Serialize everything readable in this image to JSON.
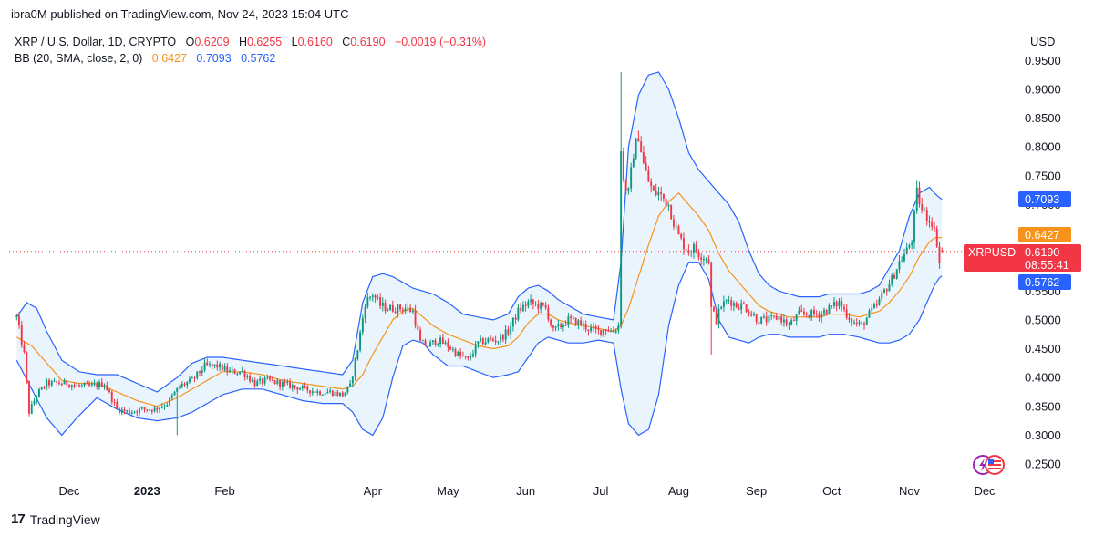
{
  "header": {
    "published": "ibra0M published on TradingView.com, Nov 24, 2023 15:04 UTC"
  },
  "legend": {
    "symbol": "XRP / U.S. Dollar, 1D, CRYPTO",
    "o_label": "O",
    "o_value": "0.6209",
    "h_label": "H",
    "h_value": "0.6255",
    "l_label": "L",
    "l_value": "0.6160",
    "c_label": "C",
    "c_value": "0.6190",
    "change": "−0.0019 (−0.31%)",
    "bb_label": "BB (20, SMA, close, 2, 0)",
    "bb_basis": "0.6427",
    "bb_upper": "0.7093",
    "bb_lower": "0.5762"
  },
  "axis": {
    "currency": "USD"
  },
  "price_tags": {
    "upper_value": "0.7093",
    "basis_value": "0.6427",
    "symbol_name": "XRPUSD",
    "last_price": "0.6190",
    "countdown": "08:55:41",
    "lower_value": "0.5762"
  },
  "footer": {
    "logo_mark": "17",
    "brand": "TradingView"
  },
  "colors": {
    "up": "#089981",
    "down": "#f23645",
    "basis": "#f7931a",
    "band": "#2962ff",
    "band_fill": "#e3f0fb"
  },
  "chart_data": {
    "type": "candlestick",
    "title": "XRP / U.S. Dollar, 1D, CRYPTO",
    "indicator": "BB (20, SMA, close, 2, 0)",
    "xlabel": "",
    "ylabel": "USD",
    "ylim": [
      0.22,
      0.96
    ],
    "y_ticks": [
      "0.2500",
      "0.3000",
      "0.3500",
      "0.4000",
      "0.4500",
      "0.5000",
      "0.5500",
      "0.6000",
      "0.6500",
      "0.7000",
      "0.7500",
      "0.8000",
      "0.8500",
      "0.9000",
      "0.9500"
    ],
    "x_ticks": [
      {
        "label": "Dec",
        "day": 21,
        "bold": false
      },
      {
        "label": "2023",
        "day": 52,
        "bold": true
      },
      {
        "label": "Feb",
        "day": 83,
        "bold": false
      },
      {
        "label": "Apr",
        "day": 142,
        "bold": false
      },
      {
        "label": "May",
        "day": 172,
        "bold": false
      },
      {
        "label": "Jun",
        "day": 203,
        "bold": false
      },
      {
        "label": "Jul",
        "day": 233,
        "bold": false
      },
      {
        "label": "Aug",
        "day": 264,
        "bold": false
      },
      {
        "label": "Sep",
        "day": 295,
        "bold": false
      },
      {
        "label": "Oct",
        "day": 325,
        "bold": false
      },
      {
        "label": "Nov",
        "day": 356,
        "bold": false
      },
      {
        "label": "Dec",
        "day": 386,
        "bold": false
      }
    ],
    "x_range_days": [
      -3,
      398
    ],
    "last_day": 369,
    "close_keypoints": [
      [
        0,
        0.505
      ],
      [
        3,
        0.44
      ],
      [
        5,
        0.34
      ],
      [
        8,
        0.37
      ],
      [
        12,
        0.39
      ],
      [
        15,
        0.39
      ],
      [
        20,
        0.39
      ],
      [
        25,
        0.385
      ],
      [
        30,
        0.385
      ],
      [
        35,
        0.39
      ],
      [
        40,
        0.345
      ],
      [
        45,
        0.34
      ],
      [
        50,
        0.345
      ],
      [
        55,
        0.345
      ],
      [
        60,
        0.355
      ],
      [
        65,
        0.385
      ],
      [
        70,
        0.395
      ],
      [
        75,
        0.42
      ],
      [
        80,
        0.42
      ],
      [
        85,
        0.41
      ],
      [
        90,
        0.41
      ],
      [
        95,
        0.39
      ],
      [
        100,
        0.395
      ],
      [
        105,
        0.39
      ],
      [
        110,
        0.385
      ],
      [
        115,
        0.38
      ],
      [
        120,
        0.375
      ],
      [
        125,
        0.375
      ],
      [
        130,
        0.37
      ],
      [
        133,
        0.385
      ],
      [
        136,
        0.45
      ],
      [
        139,
        0.53
      ],
      [
        142,
        0.545
      ],
      [
        145,
        0.525
      ],
      [
        148,
        0.52
      ],
      [
        151,
        0.52
      ],
      [
        155,
        0.52
      ],
      [
        158,
        0.515
      ],
      [
        161,
        0.46
      ],
      [
        164,
        0.455
      ],
      [
        168,
        0.465
      ],
      [
        172,
        0.455
      ],
      [
        176,
        0.44
      ],
      [
        180,
        0.43
      ],
      [
        184,
        0.46
      ],
      [
        188,
        0.465
      ],
      [
        192,
        0.465
      ],
      [
        196,
        0.48
      ],
      [
        200,
        0.515
      ],
      [
        204,
        0.53
      ],
      [
        208,
        0.525
      ],
      [
        211,
        0.52
      ],
      [
        214,
        0.48
      ],
      [
        217,
        0.49
      ],
      [
        220,
        0.5
      ],
      [
        224,
        0.495
      ],
      [
        228,
        0.485
      ],
      [
        232,
        0.48
      ],
      [
        235,
        0.485
      ],
      [
        238,
        0.48
      ],
      [
        240,
        0.49
      ],
      [
        241,
        0.8
      ],
      [
        242,
        0.74
      ],
      [
        244,
        0.72
      ],
      [
        246,
        0.79
      ],
      [
        248,
        0.82
      ],
      [
        250,
        0.77
      ],
      [
        252,
        0.74
      ],
      [
        254,
        0.72
      ],
      [
        256,
        0.72
      ],
      [
        258,
        0.71
      ],
      [
        260,
        0.7
      ],
      [
        262,
        0.67
      ],
      [
        264,
        0.645
      ],
      [
        266,
        0.63
      ],
      [
        268,
        0.62
      ],
      [
        270,
        0.625
      ],
      [
        272,
        0.615
      ],
      [
        274,
        0.61
      ],
      [
        276,
        0.605
      ],
      [
        277,
        0.52
      ],
      [
        279,
        0.5
      ],
      [
        281,
        0.525
      ],
      [
        284,
        0.535
      ],
      [
        287,
        0.525
      ],
      [
        290,
        0.525
      ],
      [
        293,
        0.51
      ],
      [
        296,
        0.5
      ],
      [
        300,
        0.5
      ],
      [
        304,
        0.505
      ],
      [
        308,
        0.49
      ],
      [
        312,
        0.51
      ],
      [
        316,
        0.51
      ],
      [
        320,
        0.51
      ],
      [
        324,
        0.52
      ],
      [
        328,
        0.53
      ],
      [
        331,
        0.51
      ],
      [
        334,
        0.495
      ],
      [
        337,
        0.49
      ],
      [
        340,
        0.51
      ],
      [
        343,
        0.525
      ],
      [
        346,
        0.55
      ],
      [
        349,
        0.57
      ],
      [
        352,
        0.6
      ],
      [
        355,
        0.62
      ],
      [
        357,
        0.64
      ],
      [
        359,
        0.72
      ],
      [
        361,
        0.69
      ],
      [
        363,
        0.68
      ],
      [
        365,
        0.67
      ],
      [
        367,
        0.635
      ],
      [
        368,
        0.6
      ],
      [
        369,
        0.619
      ]
    ],
    "bollinger_keypoints": {
      "upper": [
        [
          0,
          0.505
        ],
        [
          4,
          0.53
        ],
        [
          8,
          0.52
        ],
        [
          12,
          0.48
        ],
        [
          18,
          0.43
        ],
        [
          25,
          0.41
        ],
        [
          32,
          0.405
        ],
        [
          40,
          0.405
        ],
        [
          48,
          0.39
        ],
        [
          56,
          0.375
        ],
        [
          64,
          0.4
        ],
        [
          70,
          0.425
        ],
        [
          76,
          0.435
        ],
        [
          82,
          0.435
        ],
        [
          90,
          0.43
        ],
        [
          98,
          0.425
        ],
        [
          106,
          0.42
        ],
        [
          114,
          0.415
        ],
        [
          122,
          0.41
        ],
        [
          130,
          0.405
        ],
        [
          134,
          0.43
        ],
        [
          138,
          0.53
        ],
        [
          142,
          0.575
        ],
        [
          146,
          0.58
        ],
        [
          150,
          0.575
        ],
        [
          154,
          0.565
        ],
        [
          158,
          0.555
        ],
        [
          162,
          0.55
        ],
        [
          166,
          0.545
        ],
        [
          172,
          0.53
        ],
        [
          178,
          0.51
        ],
        [
          184,
          0.505
        ],
        [
          190,
          0.5
        ],
        [
          196,
          0.51
        ],
        [
          200,
          0.54
        ],
        [
          204,
          0.555
        ],
        [
          208,
          0.56
        ],
        [
          212,
          0.55
        ],
        [
          216,
          0.535
        ],
        [
          220,
          0.525
        ],
        [
          226,
          0.51
        ],
        [
          232,
          0.505
        ],
        [
          238,
          0.5
        ],
        [
          241,
          0.6
        ],
        [
          244,
          0.8
        ],
        [
          248,
          0.89
        ],
        [
          252,
          0.925
        ],
        [
          256,
          0.93
        ],
        [
          260,
          0.9
        ],
        [
          264,
          0.85
        ],
        [
          268,
          0.79
        ],
        [
          272,
          0.76
        ],
        [
          276,
          0.74
        ],
        [
          280,
          0.72
        ],
        [
          284,
          0.7
        ],
        [
          288,
          0.67
        ],
        [
          292,
          0.62
        ],
        [
          296,
          0.58
        ],
        [
          300,
          0.56
        ],
        [
          304,
          0.55
        ],
        [
          308,
          0.545
        ],
        [
          312,
          0.54
        ],
        [
          316,
          0.54
        ],
        [
          320,
          0.54
        ],
        [
          324,
          0.545
        ],
        [
          330,
          0.545
        ],
        [
          336,
          0.545
        ],
        [
          340,
          0.55
        ],
        [
          344,
          0.56
        ],
        [
          348,
          0.59
        ],
        [
          352,
          0.62
        ],
        [
          356,
          0.68
        ],
        [
          360,
          0.72
        ],
        [
          364,
          0.73
        ],
        [
          366,
          0.72
        ],
        [
          368,
          0.712
        ],
        [
          369,
          0.7093
        ]
      ],
      "basis": [
        [
          0,
          0.47
        ],
        [
          6,
          0.455
        ],
        [
          12,
          0.425
        ],
        [
          18,
          0.395
        ],
        [
          25,
          0.39
        ],
        [
          32,
          0.39
        ],
        [
          40,
          0.375
        ],
        [
          48,
          0.36
        ],
        [
          56,
          0.35
        ],
        [
          64,
          0.365
        ],
        [
          70,
          0.38
        ],
        [
          76,
          0.395
        ],
        [
          82,
          0.41
        ],
        [
          90,
          0.41
        ],
        [
          98,
          0.405
        ],
        [
          106,
          0.395
        ],
        [
          114,
          0.39
        ],
        [
          122,
          0.385
        ],
        [
          130,
          0.38
        ],
        [
          134,
          0.385
        ],
        [
          138,
          0.405
        ],
        [
          142,
          0.44
        ],
        [
          146,
          0.47
        ],
        [
          150,
          0.5
        ],
        [
          154,
          0.515
        ],
        [
          158,
          0.52
        ],
        [
          162,
          0.505
        ],
        [
          166,
          0.49
        ],
        [
          172,
          0.475
        ],
        [
          178,
          0.465
        ],
        [
          184,
          0.455
        ],
        [
          190,
          0.45
        ],
        [
          196,
          0.455
        ],
        [
          200,
          0.47
        ],
        [
          204,
          0.495
        ],
        [
          208,
          0.51
        ],
        [
          212,
          0.51
        ],
        [
          216,
          0.5
        ],
        [
          220,
          0.495
        ],
        [
          226,
          0.49
        ],
        [
          232,
          0.485
        ],
        [
          238,
          0.48
        ],
        [
          241,
          0.49
        ],
        [
          244,
          0.52
        ],
        [
          248,
          0.575
        ],
        [
          252,
          0.63
        ],
        [
          256,
          0.68
        ],
        [
          260,
          0.705
        ],
        [
          264,
          0.72
        ],
        [
          268,
          0.7
        ],
        [
          272,
          0.68
        ],
        [
          276,
          0.655
        ],
        [
          280,
          0.615
        ],
        [
          284,
          0.585
        ],
        [
          288,
          0.565
        ],
        [
          292,
          0.545
        ],
        [
          296,
          0.525
        ],
        [
          300,
          0.515
        ],
        [
          304,
          0.51
        ],
        [
          308,
          0.505
        ],
        [
          312,
          0.505
        ],
        [
          316,
          0.505
        ],
        [
          320,
          0.505
        ],
        [
          324,
          0.51
        ],
        [
          330,
          0.51
        ],
        [
          336,
          0.505
        ],
        [
          340,
          0.51
        ],
        [
          344,
          0.515
        ],
        [
          348,
          0.53
        ],
        [
          352,
          0.55
        ],
        [
          356,
          0.575
        ],
        [
          360,
          0.61
        ],
        [
          364,
          0.635
        ],
        [
          366,
          0.642
        ],
        [
          368,
          0.6427
        ],
        [
          369,
          0.6427
        ]
      ],
      "lower": [
        [
          0,
          0.43
        ],
        [
          6,
          0.38
        ],
        [
          12,
          0.33
        ],
        [
          18,
          0.3
        ],
        [
          24,
          0.33
        ],
        [
          32,
          0.365
        ],
        [
          40,
          0.345
        ],
        [
          48,
          0.33
        ],
        [
          56,
          0.325
        ],
        [
          64,
          0.33
        ],
        [
          70,
          0.34
        ],
        [
          76,
          0.355
        ],
        [
          82,
          0.37
        ],
        [
          90,
          0.38
        ],
        [
          98,
          0.38
        ],
        [
          106,
          0.37
        ],
        [
          114,
          0.36
        ],
        [
          122,
          0.355
        ],
        [
          130,
          0.355
        ],
        [
          134,
          0.34
        ],
        [
          138,
          0.31
        ],
        [
          142,
          0.3
        ],
        [
          146,
          0.33
        ],
        [
          150,
          0.4
        ],
        [
          154,
          0.455
        ],
        [
          158,
          0.465
        ],
        [
          162,
          0.46
        ],
        [
          166,
          0.44
        ],
        [
          172,
          0.42
        ],
        [
          178,
          0.42
        ],
        [
          184,
          0.41
        ],
        [
          190,
          0.4
        ],
        [
          196,
          0.405
        ],
        [
          200,
          0.41
        ],
        [
          204,
          0.435
        ],
        [
          208,
          0.46
        ],
        [
          212,
          0.47
        ],
        [
          216,
          0.465
        ],
        [
          220,
          0.46
        ],
        [
          226,
          0.46
        ],
        [
          232,
          0.465
        ],
        [
          238,
          0.46
        ],
        [
          241,
          0.38
        ],
        [
          244,
          0.32
        ],
        [
          248,
          0.3
        ],
        [
          252,
          0.31
        ],
        [
          256,
          0.37
        ],
        [
          260,
          0.49
        ],
        [
          264,
          0.56
        ],
        [
          268,
          0.6
        ],
        [
          272,
          0.6
        ],
        [
          276,
          0.57
        ],
        [
          280,
          0.5
        ],
        [
          284,
          0.47
        ],
        [
          288,
          0.465
        ],
        [
          292,
          0.46
        ],
        [
          296,
          0.47
        ],
        [
          300,
          0.475
        ],
        [
          304,
          0.475
        ],
        [
          308,
          0.47
        ],
        [
          312,
          0.47
        ],
        [
          316,
          0.47
        ],
        [
          320,
          0.47
        ],
        [
          324,
          0.475
        ],
        [
          330,
          0.475
        ],
        [
          336,
          0.47
        ],
        [
          340,
          0.465
        ],
        [
          344,
          0.46
        ],
        [
          348,
          0.46
        ],
        [
          352,
          0.465
        ],
        [
          356,
          0.475
        ],
        [
          360,
          0.5
        ],
        [
          364,
          0.54
        ],
        [
          366,
          0.56
        ],
        [
          368,
          0.573
        ],
        [
          369,
          0.5762
        ]
      ]
    },
    "last": {
      "open": 0.6209,
      "high": 0.6255,
      "low": 0.616,
      "close": 0.619
    }
  }
}
